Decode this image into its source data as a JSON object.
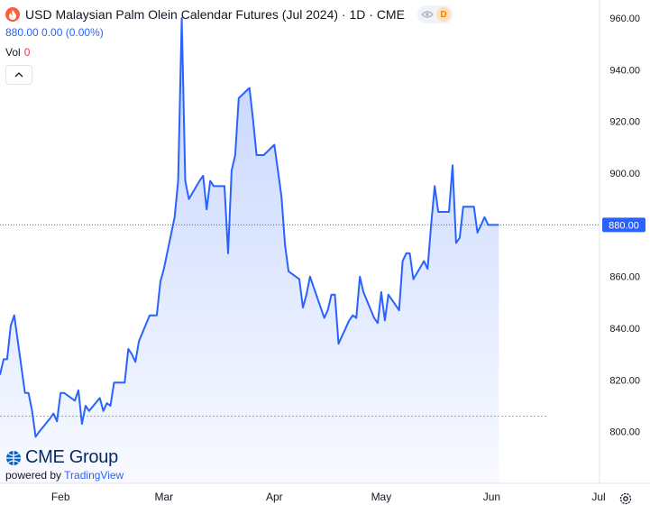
{
  "header": {
    "title": "USD Malaysian Palm Olein Calendar Futures (Jul 2024) · 1D · CME",
    "badge_letter": "D",
    "price_text": "880.00 0.00 (0.00%)",
    "vol_label": "Vol",
    "vol_value": "0"
  },
  "branding": {
    "cme_text": "CME Group",
    "powered_prefix": "powered by",
    "powered_brand": "TradingView"
  },
  "icons": [
    "flame-icon",
    "eye-icon",
    "chevron-up-icon",
    "cme-globe-icon",
    "gear-icon"
  ],
  "colors": {
    "line": "#2962ff",
    "fill": "#2962ff",
    "last_price": "#2962ff",
    "accent_orange": "#ff5d3a"
  },
  "chart_data": {
    "type": "area",
    "title": "USD Malaysian Palm Olein Calendar Futures (Jul 2024) · 1D · CME",
    "xlabel": "",
    "ylabel": "",
    "x_ticks": [
      "Feb",
      "Mar",
      "Apr",
      "May",
      "Jun",
      "Jul"
    ],
    "y_ticks": [
      "800.00",
      "820.00",
      "840.00",
      "860.00",
      "880.00",
      "900.00",
      "920.00",
      "940.00",
      "960.00"
    ],
    "ylim": [
      780,
      967
    ],
    "x_range": [
      "2024-01-15",
      "2024-07-01"
    ],
    "last_price": 880,
    "last_price_label": "880.00",
    "reference_price": 806,
    "grid": false,
    "series": [
      {
        "values": [
          [
            "2024-01-15",
            822
          ],
          [
            "2024-01-16",
            828
          ],
          [
            "2024-01-17",
            828
          ],
          [
            "2024-01-18",
            841
          ],
          [
            "2024-01-19",
            845
          ],
          [
            "2024-01-22",
            815
          ],
          [
            "2024-01-23",
            815
          ],
          [
            "2024-01-24",
            808
          ],
          [
            "2024-01-25",
            798
          ],
          [
            "2024-01-26",
            800
          ],
          [
            "2024-01-29",
            805
          ],
          [
            "2024-01-30",
            807
          ],
          [
            "2024-01-31",
            804
          ],
          [
            "2024-02-01",
            815
          ],
          [
            "2024-02-02",
            815
          ],
          [
            "2024-02-05",
            812
          ],
          [
            "2024-02-06",
            816
          ],
          [
            "2024-02-07",
            803
          ],
          [
            "2024-02-08",
            810
          ],
          [
            "2024-02-09",
            808
          ],
          [
            "2024-02-12",
            813
          ],
          [
            "2024-02-13",
            808
          ],
          [
            "2024-02-14",
            811
          ],
          [
            "2024-02-15",
            810
          ],
          [
            "2024-02-16",
            819
          ],
          [
            "2024-02-19",
            819
          ],
          [
            "2024-02-20",
            832
          ],
          [
            "2024-02-21",
            830
          ],
          [
            "2024-02-22",
            827
          ],
          [
            "2024-02-23",
            835
          ],
          [
            "2024-02-26",
            845
          ],
          [
            "2024-02-27",
            845
          ],
          [
            "2024-02-28",
            845
          ],
          [
            "2024-02-29",
            858
          ],
          [
            "2024-03-01",
            863
          ],
          [
            "2024-03-04",
            883
          ],
          [
            "2024-03-05",
            897
          ],
          [
            "2024-03-06",
            960
          ],
          [
            "2024-03-07",
            897
          ],
          [
            "2024-03-08",
            890
          ],
          [
            "2024-03-11",
            897
          ],
          [
            "2024-03-12",
            899
          ],
          [
            "2024-03-13",
            886
          ],
          [
            "2024-03-14",
            897
          ],
          [
            "2024-03-15",
            895
          ],
          [
            "2024-03-18",
            895
          ],
          [
            "2024-03-19",
            869
          ],
          [
            "2024-03-20",
            901
          ],
          [
            "2024-03-21",
            907
          ],
          [
            "2024-03-22",
            929
          ],
          [
            "2024-03-25",
            933
          ],
          [
            "2024-03-26",
            921
          ],
          [
            "2024-03-27",
            907
          ],
          [
            "2024-03-28",
            907
          ],
          [
            "2024-03-29",
            907
          ],
          [
            "2024-04-01",
            911
          ],
          [
            "2024-04-02",
            901
          ],
          [
            "2024-04-03",
            891
          ],
          [
            "2024-04-04",
            872
          ],
          [
            "2024-04-05",
            862
          ],
          [
            "2024-04-08",
            859
          ],
          [
            "2024-04-09",
            848
          ],
          [
            "2024-04-10",
            853
          ],
          [
            "2024-04-11",
            860
          ],
          [
            "2024-04-12",
            856
          ],
          [
            "2024-04-15",
            844
          ],
          [
            "2024-04-16",
            847
          ],
          [
            "2024-04-17",
            853
          ],
          [
            "2024-04-18",
            853
          ],
          [
            "2024-04-19",
            834
          ],
          [
            "2024-04-22",
            843
          ],
          [
            "2024-04-23",
            845
          ],
          [
            "2024-04-24",
            844
          ],
          [
            "2024-04-25",
            860
          ],
          [
            "2024-04-26",
            854
          ],
          [
            "2024-04-29",
            844
          ],
          [
            "2024-04-30",
            842
          ],
          [
            "2024-05-01",
            854
          ],
          [
            "2024-05-02",
            843
          ],
          [
            "2024-05-03",
            853
          ],
          [
            "2024-05-06",
            847
          ],
          [
            "2024-05-07",
            866
          ],
          [
            "2024-05-08",
            869
          ],
          [
            "2024-05-09",
            869
          ],
          [
            "2024-05-10",
            859
          ],
          [
            "2024-05-13",
            866
          ],
          [
            "2024-05-14",
            863
          ],
          [
            "2024-05-15",
            880
          ],
          [
            "2024-05-16",
            895
          ],
          [
            "2024-05-17",
            885
          ],
          [
            "2024-05-20",
            885
          ],
          [
            "2024-05-21",
            903
          ],
          [
            "2024-05-22",
            873
          ],
          [
            "2024-05-23",
            875
          ],
          [
            "2024-05-24",
            887
          ],
          [
            "2024-05-27",
            887
          ],
          [
            "2024-05-28",
            877
          ],
          [
            "2024-05-29",
            880
          ],
          [
            "2024-05-30",
            883
          ],
          [
            "2024-05-31",
            880
          ],
          [
            "2024-06-03",
            880
          ]
        ]
      }
    ]
  }
}
